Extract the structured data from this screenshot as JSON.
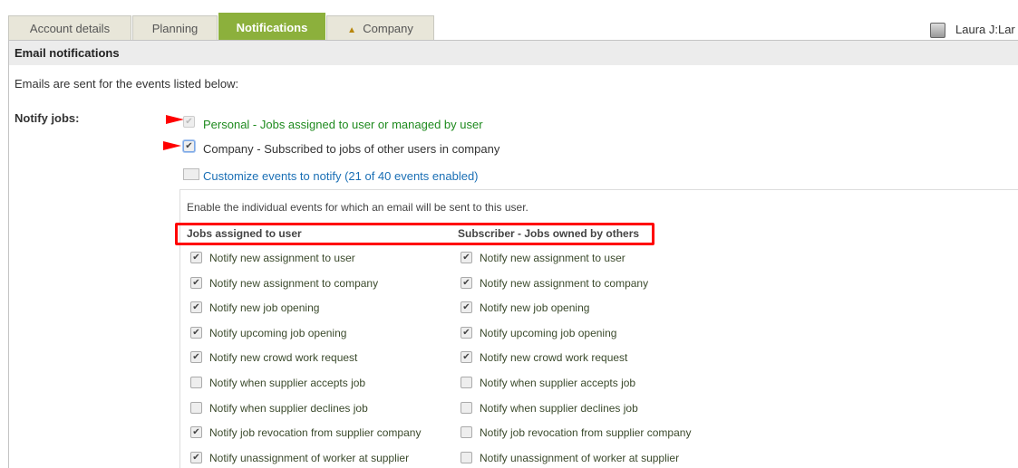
{
  "tabs": [
    {
      "label": "Account details"
    },
    {
      "label": "Planning"
    },
    {
      "label": "Notifications",
      "active": true
    },
    {
      "label": "Company",
      "icon": "up-arrow-icon"
    }
  ],
  "user": {
    "name": "Laura J:Lar"
  },
  "section_title": "Email notifications",
  "intro": "Emails are sent for the events listed below:",
  "notify_jobs": {
    "label": "Notify jobs:",
    "personal": {
      "label": "Personal - Jobs assigned to user or managed by user",
      "checked": true,
      "disabled": true
    },
    "company": {
      "label": "Company - Subscribed to jobs of other users in company",
      "checked": true
    },
    "customize_link": "Customize events to notify (21 of 40 events enabled)"
  },
  "events": {
    "description": "Enable the individual events for which an email will be sent to this user.",
    "col1_header": "Jobs assigned to user",
    "col2_header": "Subscriber - Jobs owned by others",
    "rows": [
      {
        "label": "Notify new assignment to user",
        "c1": true,
        "c2": true
      },
      {
        "label": "Notify new assignment to company",
        "c1": true,
        "c2": true
      },
      {
        "label": "Notify new job opening",
        "c1": true,
        "c2": true
      },
      {
        "label": "Notify upcoming job opening",
        "c1": true,
        "c2": true
      },
      {
        "label": "Notify new crowd work request",
        "c1": true,
        "c2": true
      },
      {
        "label": "Notify when supplier accepts job",
        "c1": false,
        "c2": false
      },
      {
        "label": "Notify when supplier declines job",
        "c1": false,
        "c2": false
      },
      {
        "label": "Notify job revocation from supplier company",
        "c1": true,
        "c2": false
      },
      {
        "label": "Notify unassignment of worker at supplier",
        "c1": true,
        "c2": false
      }
    ]
  },
  "colors": {
    "accent": "#8cb03c",
    "highlight": "#ff0000",
    "link": "#1a6fb5"
  }
}
